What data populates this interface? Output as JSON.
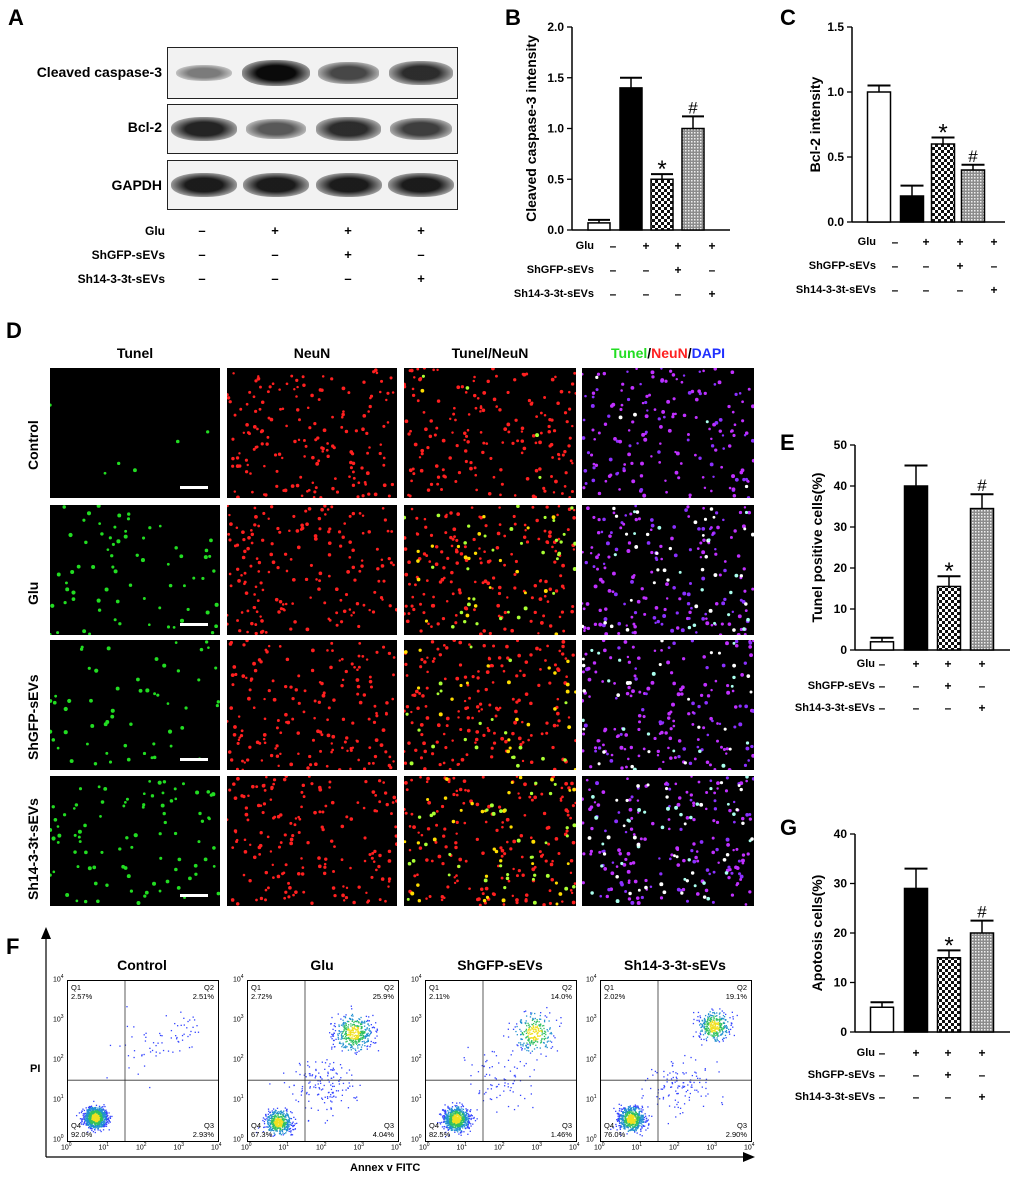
{
  "panels": {
    "A": "A",
    "B": "B",
    "C": "C",
    "D": "D",
    "E": "E",
    "F": "F",
    "G": "G"
  },
  "blot": {
    "rows": [
      "Cleaved caspase-3",
      "Bcl-2",
      "GAPDH"
    ],
    "band_intensity": [
      [
        0.35,
        1.0,
        0.65,
        0.8
      ],
      [
        0.85,
        0.55,
        0.8,
        0.7
      ],
      [
        0.9,
        0.9,
        0.9,
        0.9
      ]
    ]
  },
  "treatment_table": {
    "rows": [
      {
        "label": "Glu",
        "signs": [
          "–",
          "+",
          "+",
          "+"
        ]
      },
      {
        "label": "ShGFP-sEVs",
        "signs": [
          "–",
          "–",
          "+",
          "–"
        ]
      },
      {
        "label": "Sh14-3-3t-sEVs",
        "signs": [
          "–",
          "–",
          "–",
          "+"
        ]
      }
    ]
  },
  "chart_data": [
    {
      "panel": "B",
      "type": "bar",
      "ylabel": "Cleaved caspase-3 intensity",
      "ylim": [
        0,
        2.0
      ],
      "yticks": [
        "0.0",
        "0.5",
        "1.0",
        "1.5",
        "2.0"
      ],
      "ytick_values": [
        0,
        0.5,
        1.0,
        1.5,
        2.0
      ],
      "values": [
        0.07,
        1.4,
        0.5,
        1.0
      ],
      "errors": [
        0.03,
        0.1,
        0.05,
        0.12
      ],
      "marks": [
        "",
        "",
        "*",
        "#"
      ],
      "fills": [
        "white",
        "black",
        "checker",
        "dense"
      ]
    },
    {
      "panel": "C",
      "type": "bar",
      "ylabel": "Bcl-2 intensity",
      "ylim": [
        0,
        1.5
      ],
      "yticks": [
        "0.0",
        "0.5",
        "1.0",
        "1.5"
      ],
      "ytick_values": [
        0,
        0.5,
        1.0,
        1.5
      ],
      "values": [
        1.0,
        0.2,
        0.6,
        0.4
      ],
      "errors": [
        0.05,
        0.08,
        0.05,
        0.04
      ],
      "marks": [
        "",
        "",
        "*",
        "#"
      ],
      "fills": [
        "white",
        "black",
        "checker",
        "dense"
      ]
    },
    {
      "panel": "E",
      "type": "bar",
      "ylabel": "Tunel positive cells(%)",
      "ylim": [
        0,
        50
      ],
      "yticks": [
        "0",
        "10",
        "20",
        "30",
        "40",
        "50"
      ],
      "ytick_values": [
        0,
        10,
        20,
        30,
        40,
        50
      ],
      "values": [
        2,
        40,
        15.5,
        34.5
      ],
      "errors": [
        1,
        5,
        2.5,
        3.5
      ],
      "marks": [
        "",
        "",
        "*",
        "#"
      ],
      "fills": [
        "white",
        "black",
        "checker",
        "dense"
      ]
    },
    {
      "panel": "G",
      "type": "bar",
      "ylabel": "Apotosis cells(%)",
      "ylim": [
        0,
        40
      ],
      "yticks": [
        "0",
        "10",
        "20",
        "30",
        "40"
      ],
      "ytick_values": [
        0,
        10,
        20,
        30,
        40
      ],
      "values": [
        5,
        29,
        15,
        20
      ],
      "errors": [
        1,
        4,
        1.5,
        2.5
      ],
      "marks": [
        "",
        "",
        "*",
        "#"
      ],
      "fills": [
        "white",
        "black",
        "checker",
        "dense"
      ]
    }
  ],
  "microscopy": {
    "columns": [
      "Tunel",
      "NeuN",
      "Tunel/NeuN"
    ],
    "merge_title": {
      "part1": "Tunel",
      "sep1": "/",
      "part2": "NeuN",
      "sep2": "/",
      "part3": "DAPI"
    },
    "rows": [
      "Control",
      "Glu",
      "ShGFP-sEVs",
      "Sh14-3-3t-sEVs"
    ]
  },
  "flow": {
    "titles": [
      "Control",
      "Glu",
      "ShGFP-sEVs",
      "Sh14-3-3t-sEVs"
    ],
    "quadrants": [
      {
        "q1": "Q1",
        "q1v": "2.57%",
        "q2": "Q2",
        "q2v": "2.51%",
        "q3": "Q3",
        "q3v": "2.93%",
        "q4": "Q4",
        "q4v": "92.0%"
      },
      {
        "q1": "Q1",
        "q1v": "2.72%",
        "q2": "Q2",
        "q2v": "25.9%",
        "q3": "Q3",
        "q3v": "4.04%",
        "q4": "Q4",
        "q4v": "67.3%"
      },
      {
        "q1": "Q1",
        "q1v": "2.11%",
        "q2": "Q2",
        "q2v": "14.0%",
        "q3": "Q3",
        "q3v": "1.46%",
        "q4": "Q4",
        "q4v": "82.5%"
      },
      {
        "q1": "Q1",
        "q1v": "2.02%",
        "q2": "Q2",
        "q2v": "19.1%",
        "q3": "Q3",
        "q3v": "2.90%",
        "q4": "Q4",
        "q4v": "76.0%"
      }
    ],
    "decade_base": "10",
    "decade_exps": [
      "0",
      "1",
      "2",
      "3",
      "4"
    ],
    "xlabel": "Annex v FITC",
    "ylabel": "PI"
  },
  "colors": {
    "tunel": "#22dd22",
    "neun": "#ff2020",
    "dapi": "#2030ff",
    "merge": "#ffdd00",
    "dense": "#9a9a9a"
  }
}
